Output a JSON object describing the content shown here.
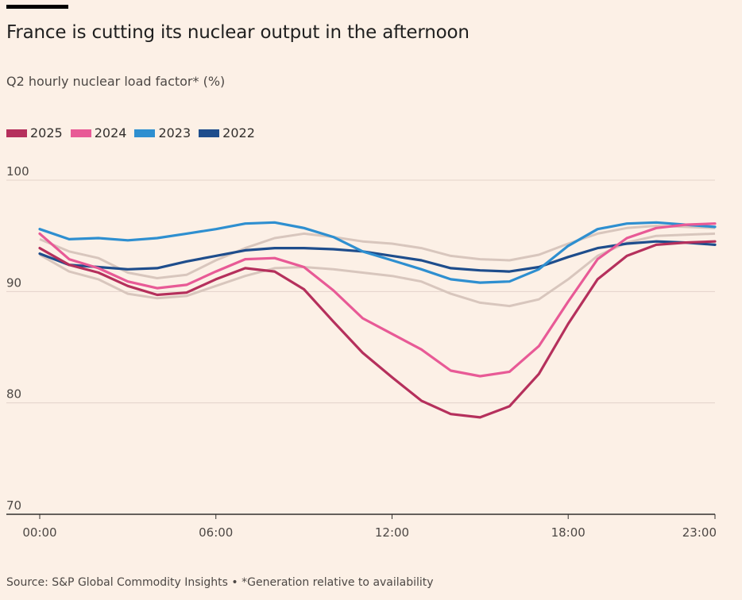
{
  "title": "France is cutting its nuclear output in the afternoon",
  "subtitle": "Q2 hourly nuclear load factor* (%)",
  "source": "Source: S&P Global Commodity Insights • *Generation relative to availability",
  "chart_data": {
    "type": "line",
    "x": [
      "00:00",
      "01:00",
      "02:00",
      "03:00",
      "04:00",
      "05:00",
      "06:00",
      "07:00",
      "08:00",
      "09:00",
      "10:00",
      "11:00",
      "12:00",
      "13:00",
      "14:00",
      "15:00",
      "16:00",
      "17:00",
      "18:00",
      "19:00",
      "20:00",
      "21:00",
      "22:00",
      "23:00"
    ],
    "x_ticks": [
      "00:00",
      "06:00",
      "12:00",
      "18:00",
      "23:00"
    ],
    "y_ticks": [
      "100",
      "90",
      "80",
      "70"
    ],
    "ylim": [
      70,
      100
    ],
    "grid": true,
    "legend_position": "top-left",
    "series": [
      {
        "name": "2025",
        "color": "#b5305c",
        "highlight": true,
        "values": [
          93.9,
          92.4,
          91.7,
          90.5,
          89.7,
          89.9,
          91.1,
          92.1,
          91.8,
          90.2,
          87.3,
          84.5,
          82.3,
          80.2,
          79.0,
          78.7,
          79.7,
          82.6,
          87.1,
          91.1,
          93.2,
          94.2,
          94.4,
          94.5
        ]
      },
      {
        "name": "2024",
        "color": "#e85a96",
        "highlight": true,
        "values": [
          95.2,
          92.9,
          92.1,
          90.9,
          90.3,
          90.6,
          91.8,
          92.9,
          93.0,
          92.2,
          90.1,
          87.6,
          86.2,
          84.8,
          82.9,
          82.4,
          82.8,
          85.1,
          89.1,
          92.9,
          94.8,
          95.7,
          96.0,
          96.1
        ]
      },
      {
        "name": "2023",
        "color": "#2e8fd0",
        "highlight": true,
        "values": [
          95.6,
          94.7,
          94.8,
          94.6,
          94.8,
          95.2,
          95.6,
          96.1,
          96.2,
          95.7,
          94.9,
          93.6,
          92.8,
          92.0,
          91.1,
          90.8,
          90.9,
          92.0,
          94.1,
          95.6,
          96.1,
          96.2,
          96.0,
          95.8
        ]
      },
      {
        "name": "2022",
        "color": "#1e4d8c",
        "highlight": true,
        "values": [
          93.4,
          92.4,
          92.2,
          92.0,
          92.1,
          92.7,
          93.2,
          93.7,
          93.9,
          93.9,
          93.8,
          93.6,
          93.2,
          92.8,
          92.1,
          91.9,
          91.8,
          92.2,
          93.1,
          93.9,
          94.3,
          94.5,
          94.4,
          94.2
        ]
      }
    ],
    "background_series": [
      {
        "color": "#d8c6bd",
        "values": [
          94.7,
          93.6,
          93.0,
          91.7,
          91.2,
          91.5,
          92.8,
          93.9,
          94.8,
          95.2,
          94.9,
          94.5,
          94.3,
          93.9,
          93.2,
          92.9,
          92.8,
          93.3,
          94.3,
          95.2,
          95.7,
          95.9,
          95.8,
          95.7
        ]
      },
      {
        "color": "#d8c6bd",
        "values": [
          93.3,
          91.8,
          91.1,
          89.8,
          89.4,
          89.6,
          90.5,
          91.4,
          92.1,
          92.2,
          92.0,
          91.7,
          91.4,
          90.9,
          89.8,
          89.0,
          88.7,
          89.3,
          91.1,
          93.2,
          94.4,
          95.0,
          95.1,
          95.2
        ]
      }
    ]
  },
  "colors": {
    "background": "#fcf0e6",
    "grid": "#e3d3ca",
    "axis": "#33302e"
  }
}
